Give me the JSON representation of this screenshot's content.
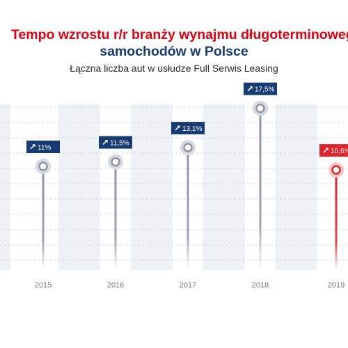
{
  "title_line1": "Tempo wzrostu r/r branży wynajmu długoterminowego",
  "title_line2": "samochodów w Polsce",
  "subtitle": "Łączna liczba aut w usłudze Full Serwis Leasing",
  "colors": {
    "title_red": "#e3000f",
    "title_blue": "#173c73",
    "badge_blue": "#173c73",
    "highlight_red": "#e1232b",
    "stem_grey": "#8e95a3",
    "band": "#eef1f6",
    "grid": "#d3d8e0",
    "tick": "#6f7785"
  },
  "chart_data": {
    "type": "line",
    "title": "Tempo wzrostu r/r branży wynajmu długoterminowego samochodów w Polsce",
    "subtitle": "Łączna liczba aut w usłudze Full Serwis Leasing",
    "categories": [
      "2015",
      "2016",
      "2017",
      "2018",
      "2019"
    ],
    "values": [
      11.0,
      11.5,
      13.1,
      17.5,
      10.6
    ],
    "labels": [
      "11%",
      "11,5%",
      "13,1%",
      "17,5%",
      "10,6%"
    ],
    "badge_icon": "arrow-up-right-icon",
    "highlighted_category": "2019",
    "ylim": [
      0,
      19.5
    ],
    "grid": true,
    "xlabel": "",
    "ylabel": ""
  }
}
